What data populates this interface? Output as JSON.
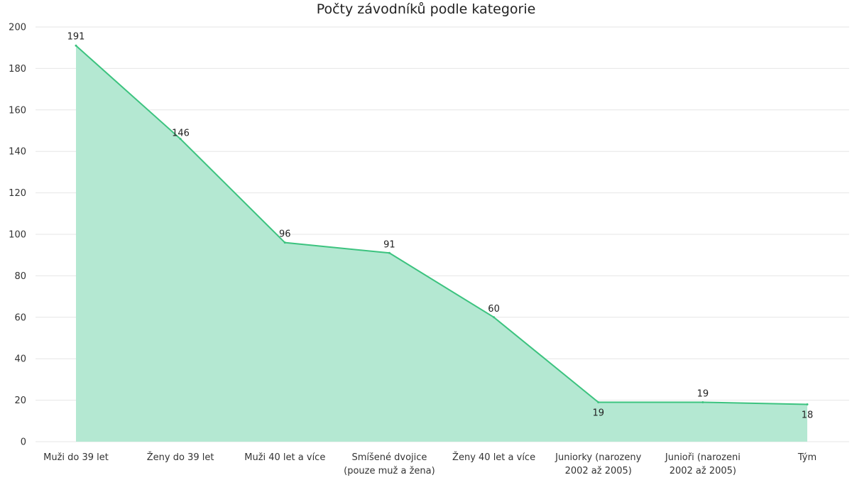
{
  "chart_data": {
    "type": "area",
    "title": "Počty závodníků podle kategorie",
    "xlabel": "",
    "ylabel": "",
    "categories": [
      "Muži do 39 let",
      "Ženy do 39 let",
      "Muži 40 let a více",
      "Smíšené dvojice (pouze muž a žena)",
      "Ženy 40 let a více",
      "Juniorky (narozeny 2002 až 2005)",
      "Junioři (narozeni 2002 až 2005)",
      "Tým"
    ],
    "category_lines": [
      [
        "Muži do 39 let"
      ],
      [
        "Ženy do 39 let"
      ],
      [
        "Muži 40 let a více"
      ],
      [
        "Smíšené dvojice",
        "(pouze muž a žena)"
      ],
      [
        "Ženy 40 let a více"
      ],
      [
        "Juniorky (narozeny",
        "2002 až 2005)"
      ],
      [
        "Junioři (narozeni",
        "2002 až 2005)"
      ],
      [
        "Tým"
      ]
    ],
    "values": [
      191,
      146,
      96,
      91,
      60,
      19,
      19,
      18
    ],
    "ylim": [
      0,
      200
    ],
    "yticks": [
      0,
      20,
      40,
      60,
      80,
      100,
      120,
      140,
      160,
      180,
      200
    ],
    "grid": true,
    "legend": "none",
    "colors": {
      "line": "#3cc37f",
      "fill": "#b4e8d2",
      "grid": "#e6e6e6"
    }
  }
}
